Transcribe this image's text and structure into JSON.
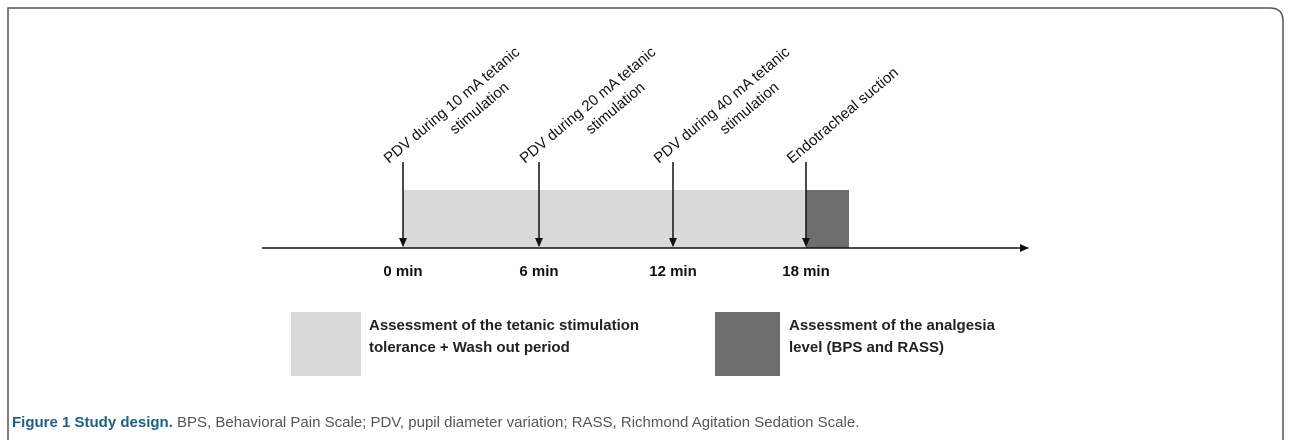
{
  "events": [
    {
      "label_lines": [
        "PDV during 10 mA tetanic",
        "stimulation"
      ],
      "time": "0 min"
    },
    {
      "label_lines": [
        "PDV during 20 mA tetanic",
        "stimulation"
      ],
      "time": "6 min"
    },
    {
      "label_lines": [
        "PDV during 40 mA tetanic",
        "stimulation"
      ],
      "time": "12 min"
    },
    {
      "label_lines": [
        "Endotracheal suction"
      ],
      "time": "18 min"
    }
  ],
  "legend": [
    {
      "lines": [
        "Assessment of the tetanic stimulation",
        "tolerance + Wash out period"
      ],
      "color": "#d9d9d9"
    },
    {
      "lines": [
        "Assessment of the analgesia",
        "level (BPS and RASS)"
      ],
      "color": "#6e6e6e"
    }
  ],
  "caption": {
    "label": "Figure 1 Study design.",
    "text": "BPS, Behavioral Pain Scale; PDV, pupil diameter variation; RASS, Richmond Agitation Sedation Scale."
  }
}
